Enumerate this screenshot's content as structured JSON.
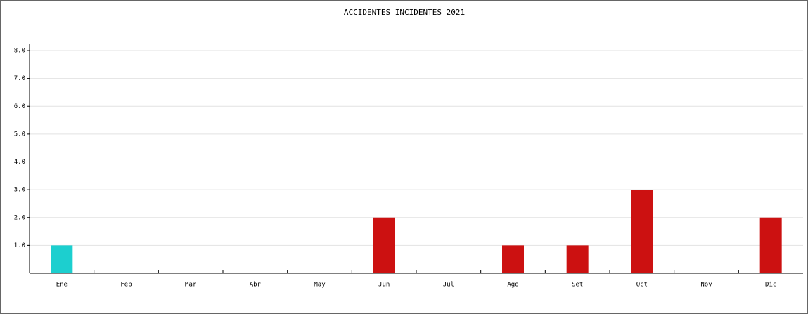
{
  "chart_data": {
    "type": "bar",
    "title": "ACCIDENTES INCIDENTES 2021",
    "categories": [
      "Ene",
      "Feb",
      "Mar",
      "Abr",
      "May",
      "Jun",
      "Jul",
      "Ago",
      "Set",
      "Oct",
      "Nov",
      "Dic"
    ],
    "values": [
      1,
      0,
      0,
      0,
      0,
      2,
      0,
      1,
      1,
      3,
      0,
      2
    ],
    "colors": [
      "#1ccfcf",
      "#cc1111",
      "#cc1111",
      "#cc1111",
      "#cc1111",
      "#cc1111",
      "#cc1111",
      "#cc1111",
      "#cc1111",
      "#cc1111",
      "#cc1111",
      "#cc1111"
    ],
    "ylim": [
      0,
      8
    ],
    "yticks": [
      {
        "value": 1,
        "label": "1.0"
      },
      {
        "value": 2,
        "label": "2.0"
      },
      {
        "value": 3,
        "label": "3.0"
      },
      {
        "value": 4,
        "label": "4.0"
      },
      {
        "value": 5,
        "label": "5.0"
      },
      {
        "value": 6,
        "label": "6.0"
      },
      {
        "value": 7,
        "label": "7.0"
      },
      {
        "value": 8,
        "label": "8.0"
      }
    ],
    "grid": true
  }
}
